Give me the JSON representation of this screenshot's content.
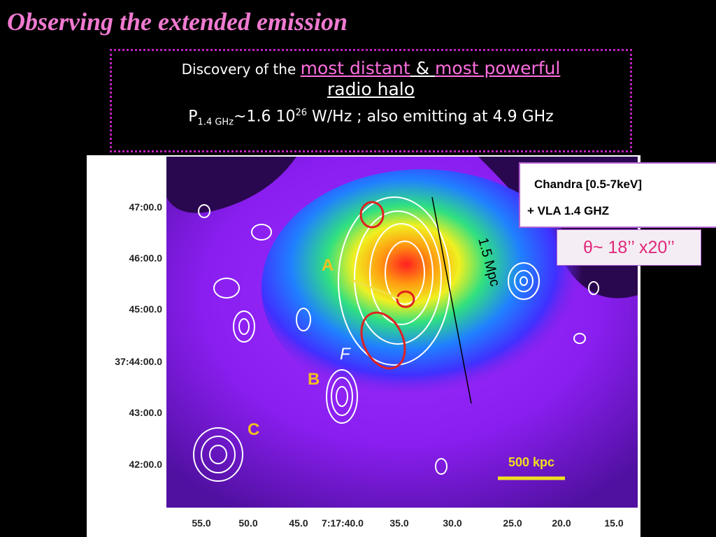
{
  "title": "Observing the extended emission",
  "box": {
    "line1": {
      "prefix": "Discovery of the ",
      "highlight1": "most distant",
      "joiner": " & ",
      "highlight2": "most powerful"
    },
    "line2": "radio halo",
    "line3": {
      "p": "P",
      "sub": "1.4 GHz",
      "mid": "~1.6 10",
      "sup": "26",
      "rest": " W/Hz ; also emitting at  4.9 GHz"
    }
  },
  "legend": {
    "line1": "Chandra [0.5-7keV]",
    "line2": "+ VLA 1.4 GHZ"
  },
  "resolution": "θ~ 18’’ x20’’",
  "image": {
    "y_labels": [
      "47:00.0",
      "46:00.0",
      "45:00.0",
      "37:44:00.0",
      "43:00.0",
      "42:00.0"
    ],
    "x_labels": [
      "55.0",
      "50.0",
      "45.0",
      "7:17:40.0",
      "35.0",
      "30.0",
      "25.0",
      "20.0",
      "15.0"
    ],
    "sources": [
      "A",
      "B",
      "C",
      "F"
    ],
    "scale_bar": "500 kpc",
    "size_label": "1.5 Mpc"
  }
}
